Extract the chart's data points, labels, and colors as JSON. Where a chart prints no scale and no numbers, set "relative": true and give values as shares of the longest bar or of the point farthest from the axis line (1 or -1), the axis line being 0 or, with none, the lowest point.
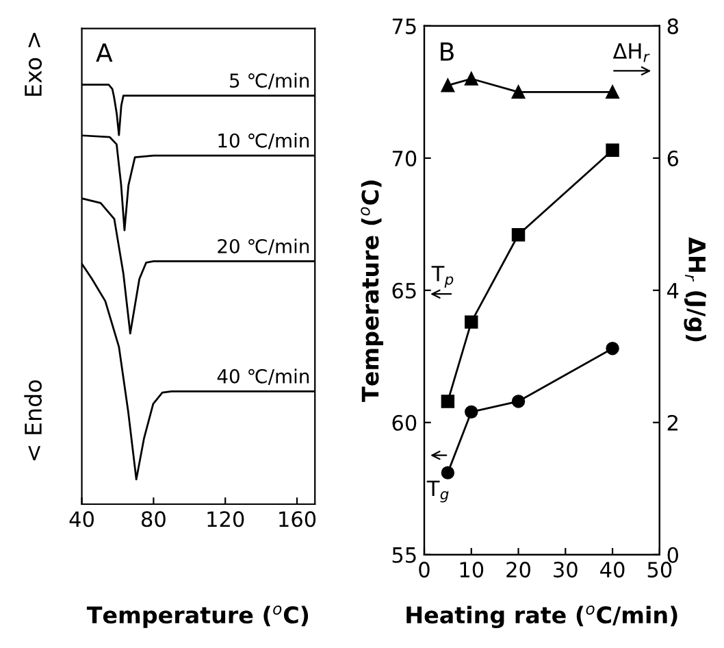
{
  "chart_data": [
    {
      "type": "line",
      "title": "A",
      "xlabel": "Temperature ($^{o}$C)",
      "relative": true,
      "xlim": [
        40,
        170
      ],
      "xticks": [
        40,
        80,
        120,
        160
      ],
      "grid": false,
      "legend": false,
      "marker": "none",
      "line_style": "solid",
      "annotations": [
        "Exo >",
        "< Endo"
      ],
      "series": [
        {
          "name": "5 ℃/min",
          "color": "#000000",
          "x": [
            40,
            55,
            57,
            58,
            59.5,
            60.7,
            62,
            63.2,
            170
          ],
          "values": [
            1.0,
            1.0,
            0.99,
            0.97,
            0.93,
            0.88,
            0.95,
            0.974,
            0.974
          ]
        },
        {
          "name": "10 ℃/min",
          "color": "#000000",
          "x": [
            40,
            55.6,
            59.4,
            61.9,
            63.8,
            66,
            69.6,
            80,
            170
          ],
          "values": [
            0.879,
            0.875,
            0.858,
            0.762,
            0.653,
            0.76,
            0.827,
            0.831,
            0.831
          ]
        },
        {
          "name": "20 ℃/min",
          "color": "#000000",
          "x": [
            40,
            50.5,
            58.1,
            63.2,
            67.0,
            72.1,
            75.9,
            80,
            170
          ],
          "values": [
            0.729,
            0.718,
            0.68,
            0.549,
            0.407,
            0.537,
            0.576,
            0.579,
            0.579
          ]
        },
        {
          "name": "40 ℃/min",
          "color": "#000000",
          "x": [
            40,
            45.5,
            53.1,
            60.7,
            65.8,
            70.4,
            74.7,
            79.8,
            84.9,
            90,
            170
          ],
          "values": [
            0.573,
            0.538,
            0.484,
            0.375,
            0.223,
            0.059,
            0.157,
            0.239,
            0.266,
            0.269,
            0.269
          ]
        }
      ]
    },
    {
      "type": "line",
      "title": "B",
      "xlabel": "Heating rate ($^{o}$C/min)",
      "ylabel": "Temperature ($^{o}$C)",
      "y2label": "ΔH$_{r}$ (J/g)",
      "xlim": [
        0,
        50
      ],
      "xticks": [
        0,
        10,
        20,
        30,
        40,
        50
      ],
      "ylim": [
        55,
        75
      ],
      "yticks": [
        55,
        60,
        65,
        70,
        75
      ],
      "y2lim": [
        0,
        8
      ],
      "y2ticks": [
        0,
        2,
        4,
        6,
        8
      ],
      "grid": false,
      "legend": false,
      "line_style": "solid",
      "annotations": [
        "T$_{p}$",
        "T$_{g}$",
        "ΔH$_{r}$"
      ],
      "series": [
        {
          "color": "#000000",
          "marker": "square",
          "x": [
            5,
            10,
            20,
            40
          ],
          "values": [
            60.8,
            63.8,
            67.1,
            70.3
          ]
        },
        {
          "color": "#000000",
          "marker": "circle",
          "x": [
            5,
            10,
            20,
            40
          ],
          "values": [
            58.1,
            60.4,
            60.8,
            62.8
          ]
        },
        {
          "color": "#000000",
          "marker": "triangle",
          "axis": "y2",
          "x": [
            5,
            10,
            20,
            40
          ],
          "values": [
            7.1,
            7.2,
            7.0,
            7.0
          ]
        }
      ]
    }
  ]
}
